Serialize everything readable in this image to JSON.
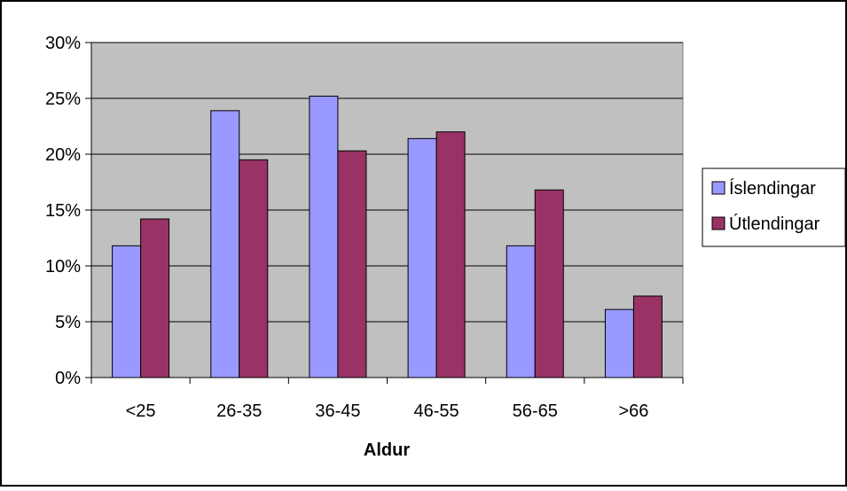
{
  "chart_data": {
    "type": "bar",
    "categories": [
      "<25",
      "26-35",
      "36-45",
      "46-55",
      "56-65",
      ">66"
    ],
    "series": [
      {
        "name": "Íslendingar",
        "color": "#9999ff",
        "values": [
          11.8,
          23.9,
          25.2,
          21.4,
          11.8,
          6.1
        ]
      },
      {
        "name": "Útlendingar",
        "color": "#993366",
        "values": [
          14.2,
          19.5,
          20.3,
          22.0,
          16.8,
          7.3
        ]
      }
    ],
    "y_ticks": [
      "0%",
      "5%",
      "10%",
      "15%",
      "20%",
      "25%",
      "30%"
    ],
    "ylim": [
      0,
      30
    ],
    "xlabel": "Aldur",
    "ylabel": "",
    "title": "",
    "grid": true,
    "legend_position": "right",
    "plot_background": "#c0c0c0"
  }
}
